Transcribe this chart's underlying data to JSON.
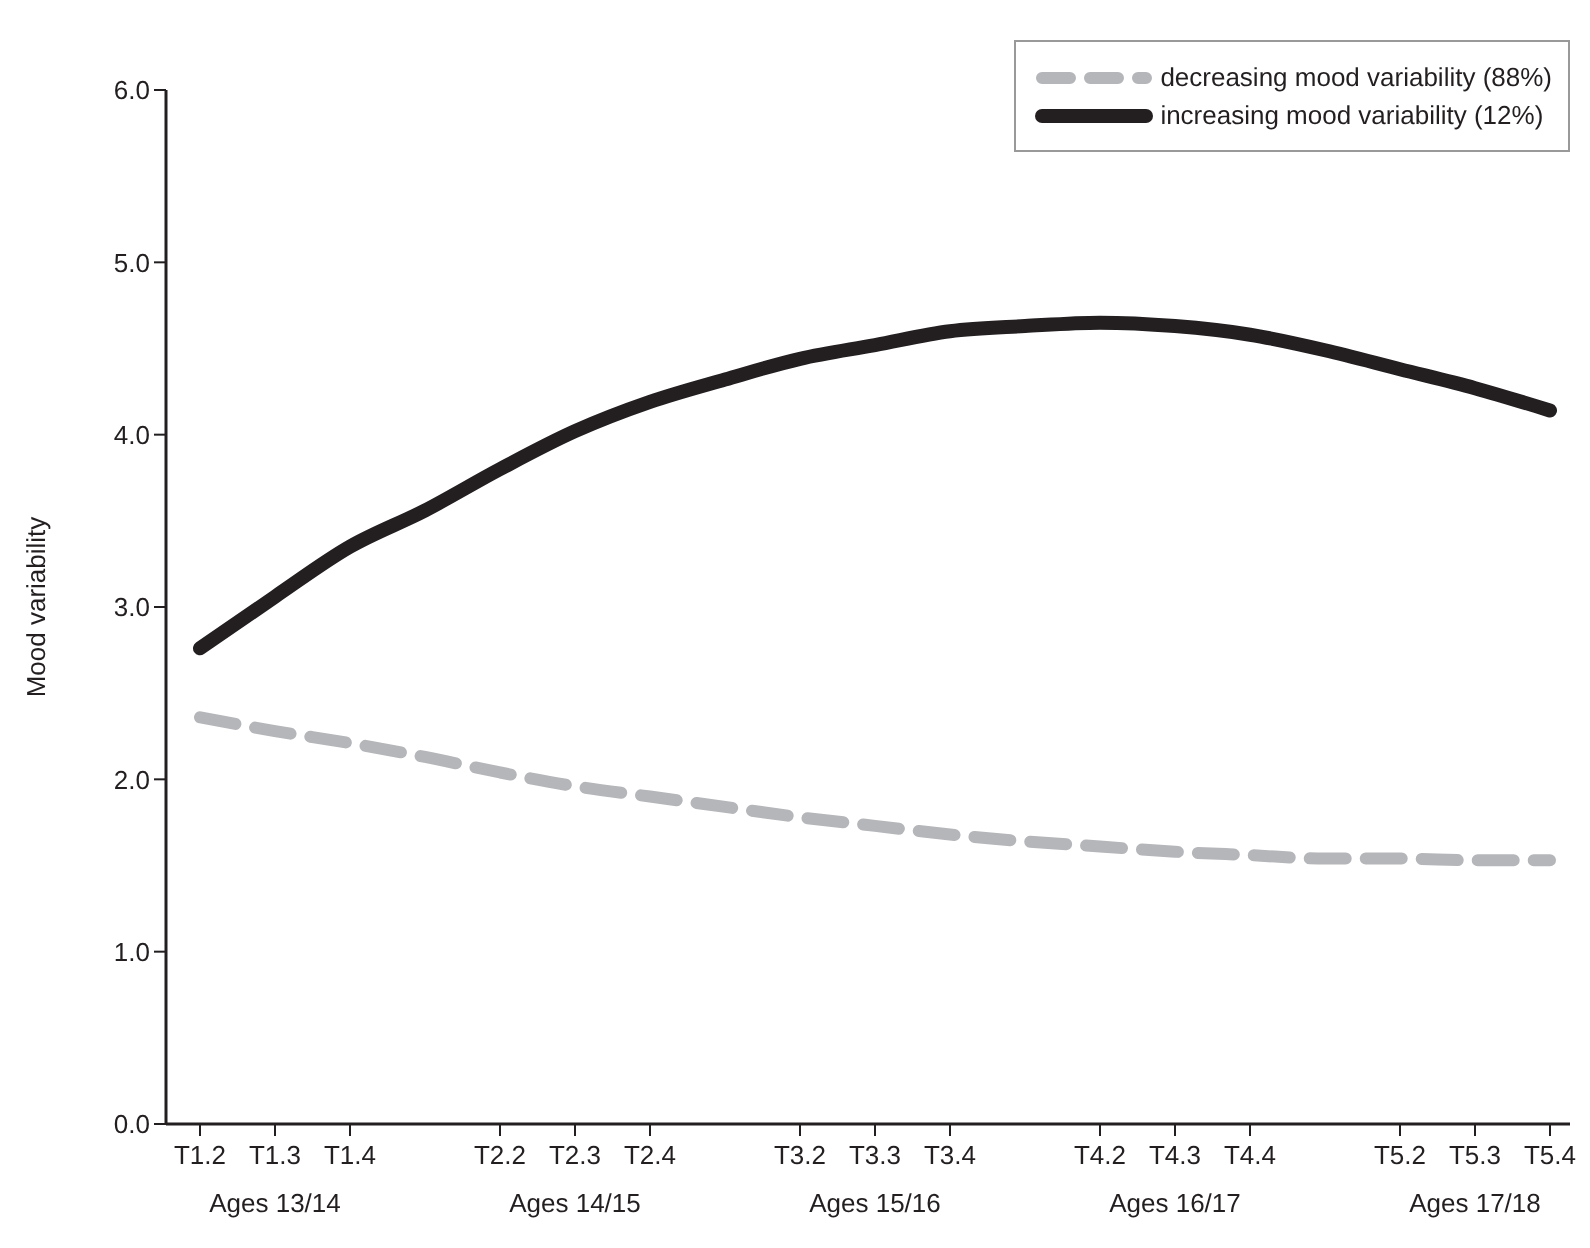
{
  "chart_data": {
    "type": "line",
    "ylabel": "Mood variability",
    "categories": [
      "T1.2",
      "T1.3",
      "T1.4",
      null,
      "T2.2",
      "T2.3",
      "T2.4",
      null,
      "T3.2",
      "T3.3",
      "T3.4",
      null,
      "T4.2",
      "T4.3",
      "T4.4",
      null,
      "T5.2",
      "T5.3",
      "T5.4"
    ],
    "series": [
      {
        "name": "decreasing mood variability (88%)",
        "color": "#b5b6ba",
        "line_style": "dashed",
        "values": [
          2.36,
          2.28,
          2.21,
          2.13,
          2.04,
          1.96,
          1.9,
          1.84,
          1.78,
          1.73,
          1.68,
          1.64,
          1.61,
          1.58,
          1.56,
          1.54,
          1.54,
          1.53,
          1.53
        ]
      },
      {
        "name": "increasing mood variability (12%)",
        "color": "#231f20",
        "line_style": "solid",
        "values": [
          2.76,
          3.06,
          3.35,
          3.56,
          3.8,
          4.02,
          4.19,
          4.32,
          4.44,
          4.52,
          4.6,
          4.63,
          4.65,
          4.63,
          4.58,
          4.49,
          4.38,
          4.27,
          4.14
        ]
      }
    ],
    "ylim": [
      0,
      6
    ],
    "yticks": [
      {
        "value": 0,
        "label": "0.0"
      },
      {
        "value": 1,
        "label": "1.0"
      },
      {
        "value": 2,
        "label": "2.0"
      },
      {
        "value": 3,
        "label": "3.0"
      },
      {
        "value": 4,
        "label": "4.0"
      },
      {
        "value": 5,
        "label": "5.0"
      },
      {
        "value": 6,
        "label": "6.0"
      }
    ],
    "annotations": [
      "Ages 13/14",
      "Ages 14/15",
      "Ages 15/16",
      "Ages 16/17",
      "Ages 17/18"
    ],
    "grid": false,
    "legend": "top right",
    "marker": "none"
  }
}
